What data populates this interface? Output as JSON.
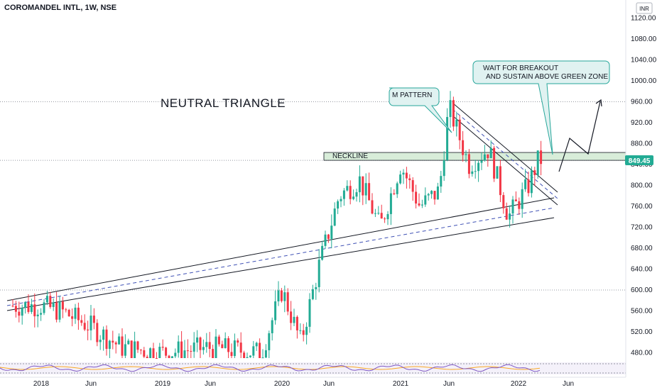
{
  "header": {
    "title": "COROMANDEL INTL, 1W, NSE",
    "currency": "INR"
  },
  "price_label": "849.45",
  "annotations": {
    "big_title": "NEUTRAL TRIANGLE",
    "m_pattern": "M PATTERN",
    "wait_line1": "WAIT FOR BREAKOUT",
    "wait_line2": "AND SUSTAIN ABOVE GREEN ZONE",
    "neckline": "NECKLINE"
  },
  "colors": {
    "up": "#22ab94",
    "down": "#f23645",
    "price_badge": "#22ab94",
    "zone_fill": "#c8e6c9",
    "callout_fill": "#e0f2f1",
    "callout_border": "#26a69a",
    "rsi_line": "#7e57c2",
    "rsi_ma": "#f9a825"
  },
  "chart_data": {
    "type": "candlestick",
    "title": "COROMANDEL INTL, 1W, NSE",
    "interval": "1W",
    "y_unit": "INR",
    "y_ticks": [
      "1120.00",
      "1080.00",
      "1040.00",
      "1000.00",
      "960.00",
      "920.00",
      "880.00",
      "840.00",
      "800.00",
      "760.00",
      "720.00",
      "680.00",
      "640.00",
      "600.00",
      "560.00",
      "520.00",
      "480.00"
    ],
    "x_ticks": [
      "2018",
      "Jun",
      "2019",
      "Jun",
      "2020",
      "Jun",
      "2021",
      "Jun",
      "2022",
      "Jun"
    ],
    "last_price": 849.45,
    "neckline_zone": [
      848,
      863
    ],
    "reference_levels": [
      960,
      600
    ],
    "approx_closes": [
      {
        "date": "2018-01",
        "close": 570
      },
      {
        "date": "2018-03",
        "close": 560
      },
      {
        "date": "2018-06",
        "close": 530
      },
      {
        "date": "2018-09",
        "close": 490
      },
      {
        "date": "2019-01",
        "close": 480
      },
      {
        "date": "2019-06",
        "close": 490
      },
      {
        "date": "2019-11",
        "close": 480
      },
      {
        "date": "2020-01",
        "close": 600
      },
      {
        "date": "2020-03",
        "close": 500
      },
      {
        "date": "2020-05",
        "close": 650
      },
      {
        "date": "2020-07",
        "close": 780
      },
      {
        "date": "2020-09",
        "close": 810
      },
      {
        "date": "2020-11",
        "close": 720
      },
      {
        "date": "2021-01",
        "close": 840
      },
      {
        "date": "2021-03",
        "close": 760
      },
      {
        "date": "2021-05",
        "close": 790
      },
      {
        "date": "2021-06",
        "close": 950
      },
      {
        "date": "2021-08",
        "close": 840
      },
      {
        "date": "2021-10",
        "close": 870
      },
      {
        "date": "2021-12",
        "close": 740
      },
      {
        "date": "2022-02",
        "close": 800
      },
      {
        "date": "2022-03",
        "close": 849.45
      }
    ]
  }
}
